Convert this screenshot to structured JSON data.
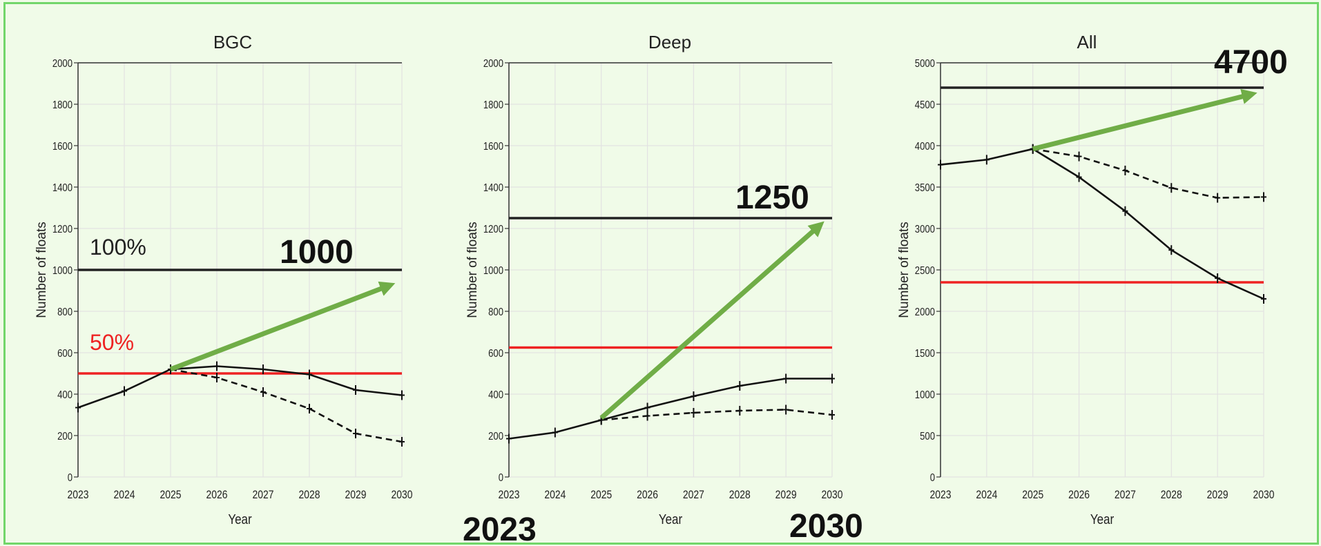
{
  "chart_data": [
    {
      "type": "line",
      "title": "BGC",
      "xlabel": "Year",
      "ylabel": "Number of floats",
      "xlim": [
        2023,
        2030
      ],
      "ylim": [
        0,
        2000
      ],
      "yticks": [
        0,
        200,
        400,
        600,
        800,
        1000,
        1200,
        1400,
        1600,
        1800,
        2000
      ],
      "xticks": [
        2023,
        2024,
        2025,
        2026,
        2027,
        2028,
        2029,
        2030
      ],
      "grid": true,
      "series": [
        {
          "style": "solid",
          "x": [
            2023,
            2024,
            2025,
            2026,
            2027,
            2028,
            2029,
            2030
          ],
          "values": [
            335,
            415,
            520,
            535,
            520,
            495,
            420,
            395
          ]
        },
        {
          "style": "dashed",
          "x": [
            2025,
            2026,
            2027,
            2028,
            2029,
            2030
          ],
          "values": [
            520,
            480,
            410,
            330,
            210,
            170
          ]
        }
      ],
      "reference_lines": [
        {
          "value": 1000,
          "color": "#222222",
          "label": "100%",
          "callout": "1000"
        },
        {
          "value": 500,
          "color": "#ee2222",
          "label": "50%"
        }
      ],
      "arrow": {
        "from": [
          2025,
          520
        ],
        "to": [
          2030,
          925
        ],
        "color": "#70ad47"
      }
    },
    {
      "type": "line",
      "title": "Deep",
      "xlabel": "Year",
      "ylabel": "Number of floats",
      "xlim": [
        2023,
        2030
      ],
      "ylim": [
        0,
        2000
      ],
      "yticks": [
        0,
        200,
        400,
        600,
        800,
        1000,
        1200,
        1400,
        1600,
        1800,
        2000
      ],
      "xticks": [
        2023,
        2024,
        2025,
        2026,
        2027,
        2028,
        2029,
        2030
      ],
      "grid": true,
      "series": [
        {
          "style": "solid",
          "x": [
            2023,
            2024,
            2025,
            2026,
            2027,
            2028,
            2029,
            2030
          ],
          "values": [
            185,
            215,
            275,
            335,
            390,
            440,
            475,
            475
          ]
        },
        {
          "style": "dashed",
          "x": [
            2025,
            2026,
            2027,
            2028,
            2029,
            2030
          ],
          "values": [
            275,
            295,
            310,
            320,
            325,
            300
          ]
        }
      ],
      "reference_lines": [
        {
          "value": 1250,
          "color": "#222222",
          "callout": "1250"
        },
        {
          "value": 625,
          "color": "#ee2222"
        }
      ],
      "arrow": {
        "from": [
          2025,
          285
        ],
        "to": [
          2030,
          1215
        ],
        "color": "#70ad47"
      },
      "range_labels": [
        "2023",
        "2030"
      ]
    },
    {
      "type": "line",
      "title": "All",
      "xlabel": "Year",
      "ylabel": "Number of floats",
      "xlim": [
        2023,
        2030
      ],
      "ylim": [
        0,
        5000
      ],
      "yticks": [
        0,
        500,
        1000,
        1500,
        2000,
        2500,
        3000,
        3500,
        4000,
        4500,
        5000
      ],
      "xticks": [
        2023,
        2024,
        2025,
        2026,
        2027,
        2028,
        2029,
        2030
      ],
      "grid": true,
      "series": [
        {
          "style": "solid",
          "x": [
            2023,
            2024,
            2025,
            2026,
            2027,
            2028,
            2029,
            2030
          ],
          "values": [
            3770,
            3830,
            3960,
            3620,
            3210,
            2740,
            2400,
            2150
          ]
        },
        {
          "style": "dashed",
          "x": [
            2025,
            2026,
            2027,
            2028,
            2029,
            2030
          ],
          "values": [
            3960,
            3870,
            3700,
            3490,
            3370,
            3380
          ]
        }
      ],
      "reference_lines": [
        {
          "value": 4700,
          "color": "#222222",
          "callout": "4700"
        },
        {
          "value": 2350,
          "color": "#ee2222"
        }
      ],
      "arrow": {
        "from": [
          2025,
          3960
        ],
        "to": [
          2030,
          4620
        ],
        "color": "#70ad47"
      }
    }
  ]
}
